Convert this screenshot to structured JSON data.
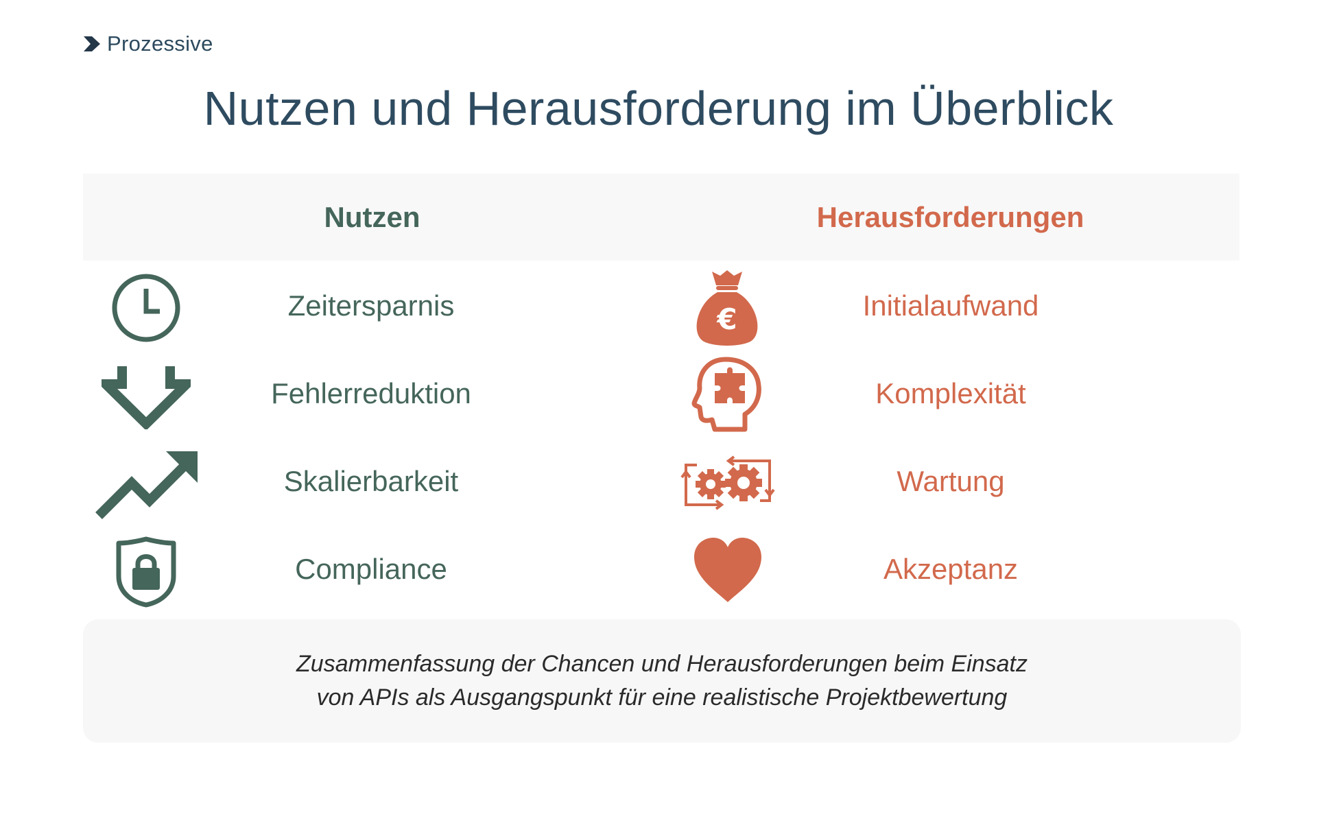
{
  "brand": {
    "name": "Prozessive"
  },
  "title": "Nutzen und Herausforderung im Überblick",
  "columns": {
    "benefits": "Nutzen",
    "challenges": "Herausforderungen"
  },
  "benefits": [
    {
      "label": "Zeitersparnis",
      "icon": "clock-icon"
    },
    {
      "label": "Fehlerreduktion",
      "icon": "double-arrow-down-icon"
    },
    {
      "label": "Skalierbarkeit",
      "icon": "trend-up-arrow-icon"
    },
    {
      "label": "Compliance",
      "icon": "shield-lock-icon"
    }
  ],
  "challenges": [
    {
      "label": "Initialaufwand",
      "icon": "money-bag-euro-icon"
    },
    {
      "label": "Komplexität",
      "icon": "head-puzzle-icon"
    },
    {
      "label": "Wartung",
      "icon": "gears-cycle-icon"
    },
    {
      "label": "Akzeptanz",
      "icon": "heart-icon"
    }
  ],
  "summary": {
    "line1": "Zusammenfassung der Chancen und Herausforderungen beim Einsatz",
    "line2": "von APIs als Ausgangspunkt für eine realistische Projektbewertung"
  },
  "colors": {
    "benefit": "#45665a",
    "challenge": "#d2694c",
    "title": "#2e4b60"
  }
}
